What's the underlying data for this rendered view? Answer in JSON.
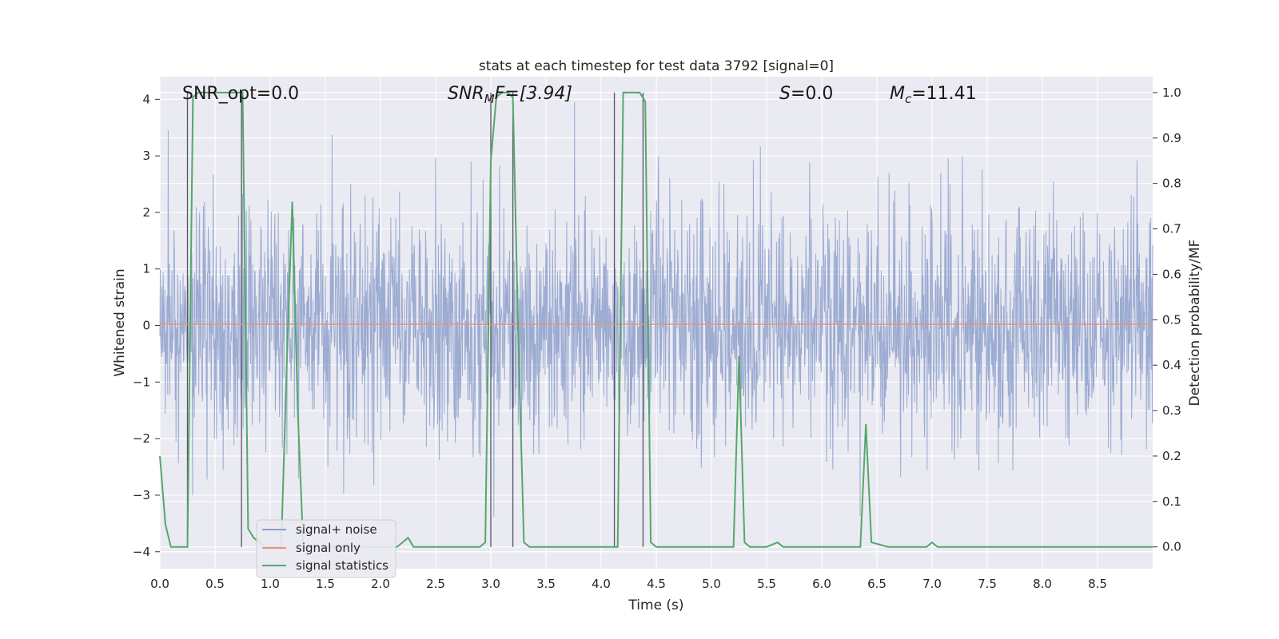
{
  "chart_data": {
    "type": "line",
    "title": "stats at each timestep for test data 3792 [signal=0]",
    "xlabel": "Time (s)",
    "ylabel": "Whitened strain",
    "y2label": "Detection probability/MF",
    "xlim": [
      0.0,
      9.0
    ],
    "ylim": [
      -4.3,
      4.4
    ],
    "y2lim": [
      -0.048,
      1.035
    ],
    "xticks": [
      "0.0",
      "0.5",
      "1.0",
      "1.5",
      "2.0",
      "2.5",
      "3.0",
      "3.5",
      "4.0",
      "4.5",
      "5.0",
      "5.5",
      "6.0",
      "6.5",
      "7.0",
      "7.5",
      "8.0",
      "8.5"
    ],
    "yticks": [
      "−4",
      "−3",
      "−2",
      "−1",
      "0",
      "1",
      "2",
      "3",
      "4"
    ],
    "y2ticks": [
      "0.0",
      "0.1",
      "0.2",
      "0.3",
      "0.4",
      "0.5",
      "0.6",
      "0.7",
      "0.8",
      "0.9",
      "1.0"
    ],
    "grid": true,
    "legend_position": "lower-left",
    "legend": [
      {
        "label": "signal+ noise",
        "color": "#8da0cb"
      },
      {
        "label": "signal only",
        "color": "#e8947a"
      },
      {
        "label": "signal statistics",
        "color": "#55a868"
      }
    ],
    "annotations": {
      "snr_opt": "SNR_opt=0.0",
      "snr_mf_main": "SNR",
      "snr_mf_sub": "M",
      "snr_mf_rest": "F=[3.94]",
      "s_main": "S",
      "s_rest": "=0.0",
      "mc_main": "M",
      "mc_sub": "c",
      "mc_rest": "=11.41"
    },
    "series": [
      {
        "name": "signal statistics",
        "axis": "right",
        "color": "#55a868",
        "x": [
          0.0,
          0.05,
          0.1,
          0.15,
          0.2,
          0.25,
          0.3,
          0.35,
          0.4,
          0.45,
          0.5,
          0.55,
          0.6,
          0.65,
          0.7,
          0.75,
          0.8,
          0.85,
          0.9,
          0.95,
          1.0,
          1.05,
          1.1,
          1.15,
          1.2,
          1.25,
          1.3,
          1.35,
          1.4,
          1.45,
          1.5,
          1.6,
          1.7,
          1.8,
          1.9,
          2.0,
          2.1,
          2.15,
          2.2,
          2.25,
          2.3,
          2.4,
          2.6,
          2.8,
          2.9,
          2.95,
          3.0,
          3.05,
          3.1,
          3.15,
          3.2,
          3.25,
          3.3,
          3.35,
          3.5,
          3.8,
          4.0,
          4.1,
          4.15,
          4.2,
          4.25,
          4.3,
          4.35,
          4.4,
          4.45,
          4.5,
          4.8,
          5.0,
          5.1,
          5.15,
          5.2,
          5.25,
          5.3,
          5.35,
          5.5,
          5.6,
          5.65,
          5.7,
          6.0,
          6.2,
          6.3,
          6.35,
          6.4,
          6.45,
          6.6,
          6.9,
          6.95,
          7.0,
          7.05,
          7.1,
          7.5,
          8.0,
          8.5,
          9.0
        ],
        "y": [
          0.2,
          0.05,
          0.0,
          0.0,
          0.0,
          0.0,
          0.99,
          1.0,
          1.0,
          1.0,
          1.0,
          1.0,
          1.0,
          1.0,
          1.0,
          1.0,
          0.04,
          0.02,
          0.01,
          0.0,
          0.0,
          0.0,
          0.0,
          0.4,
          0.76,
          0.3,
          0.0,
          0.0,
          0.0,
          0.0,
          0.0,
          0.0,
          0.0,
          0.0,
          0.0,
          0.0,
          0.0,
          0.0,
          0.01,
          0.02,
          0.0,
          0.0,
          0.0,
          0.0,
          0.0,
          0.01,
          0.85,
          0.99,
          1.0,
          1.0,
          0.99,
          0.45,
          0.01,
          0.0,
          0.0,
          0.0,
          0.0,
          0.0,
          0.0,
          1.0,
          1.0,
          1.0,
          1.0,
          0.98,
          0.01,
          0.0,
          0.0,
          0.0,
          0.0,
          0.0,
          0.0,
          0.42,
          0.01,
          0.0,
          0.0,
          0.01,
          0.0,
          0.0,
          0.0,
          0.0,
          0.0,
          0.0,
          0.27,
          0.01,
          0.0,
          0.0,
          0.0,
          0.01,
          0.0,
          0.0,
          0.0,
          0.0,
          0.0,
          0.0
        ]
      },
      {
        "name": "signal only",
        "axis": "left",
        "color": "#e8947a",
        "x": [
          0.0,
          9.0
        ],
        "y": [
          0.02,
          0.02
        ]
      },
      {
        "name": "signal+ noise",
        "axis": "left",
        "color": "#8da0cb",
        "description": "whitened noise time series, amplitude mostly within ±2, peaks near ±4",
        "x_range": [
          0.0,
          9.0
        ],
        "envelope": [
          -4.0,
          4.0
        ]
      }
    ],
    "vertical_markers_x": [
      0.25,
      0.74,
      3.0,
      3.2,
      4.12,
      4.38
    ]
  }
}
